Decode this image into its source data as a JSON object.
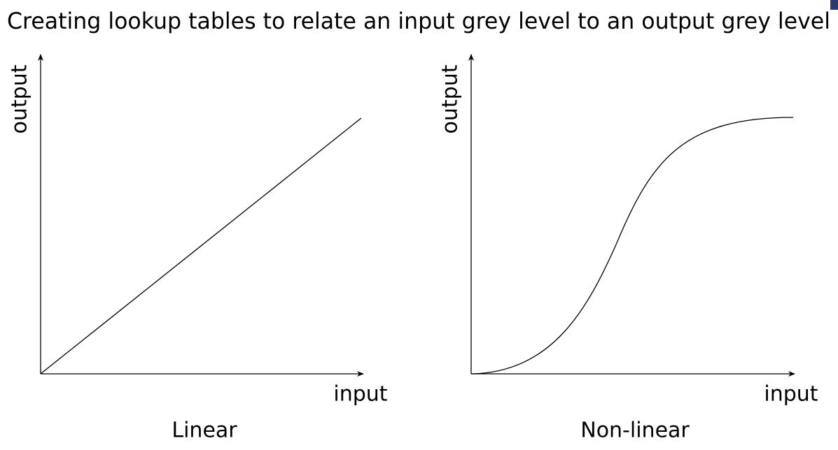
{
  "title": "Creating lookup tables to relate an input grey level to an output grey level",
  "panels": [
    {
      "x_label": "input",
      "y_label": "output",
      "caption": "Linear"
    },
    {
      "x_label": "input",
      "y_label": "output",
      "caption": "Non-linear"
    }
  ]
}
